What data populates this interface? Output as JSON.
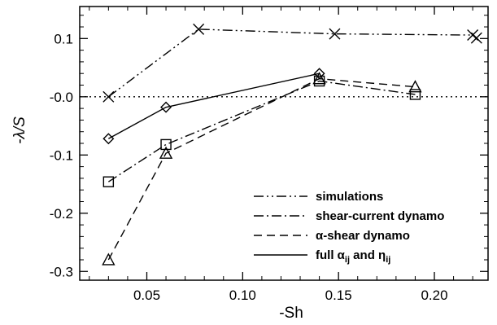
{
  "chart_data": {
    "type": "line",
    "title": "",
    "xlabel": "-Sh",
    "ylabel": "-λ/S",
    "xlim": [
      0.015,
      0.228
    ],
    "ylim": [
      -0.315,
      0.155
    ],
    "x_ticks": [
      0.05,
      0.1,
      0.15,
      0.2
    ],
    "x_tick_labels": [
      "0.05",
      "0.10",
      "0.15",
      "0.20"
    ],
    "y_ticks": [
      0.1,
      0.0,
      -0.1,
      -0.2,
      -0.3
    ],
    "y_tick_labels": [
      "0.1",
      "-0.0",
      "-0.1",
      "-0.2",
      "-0.3"
    ],
    "reference_line": {
      "y": 0.0,
      "style": "dotted"
    },
    "grid": false,
    "legend_position": "bottom-right",
    "series": [
      {
        "name": "simulations",
        "line_style": "dash-dot-dot",
        "marker": "x",
        "x": [
          0.03,
          0.077,
          0.148,
          0.22,
          0.222
        ],
        "y": [
          0.0,
          0.116,
          0.108,
          0.106,
          0.101
        ]
      },
      {
        "name": "shear-current dynamo",
        "line_style": "dash-dot",
        "marker": "square",
        "x": [
          0.03,
          0.06,
          0.14,
          0.19
        ],
        "y": [
          -0.146,
          -0.082,
          0.027,
          0.004
        ]
      },
      {
        "name": "α-shear dynamo",
        "line_style": "dashed",
        "marker": "triangle",
        "x": [
          0.03,
          0.06,
          0.14,
          0.19
        ],
        "y": [
          -0.28,
          -0.097,
          0.031,
          0.017
        ]
      },
      {
        "name": "full αᵢⱼ and ηᵢⱼ",
        "legend_base": "full α",
        "legend_sub1": "ij",
        "legend_mid": " and η",
        "legend_sub2": "ij",
        "line_style": "solid",
        "marker": "diamond",
        "x": [
          0.03,
          0.06,
          0.14
        ],
        "y": [
          -0.072,
          -0.018,
          0.04
        ]
      }
    ]
  }
}
